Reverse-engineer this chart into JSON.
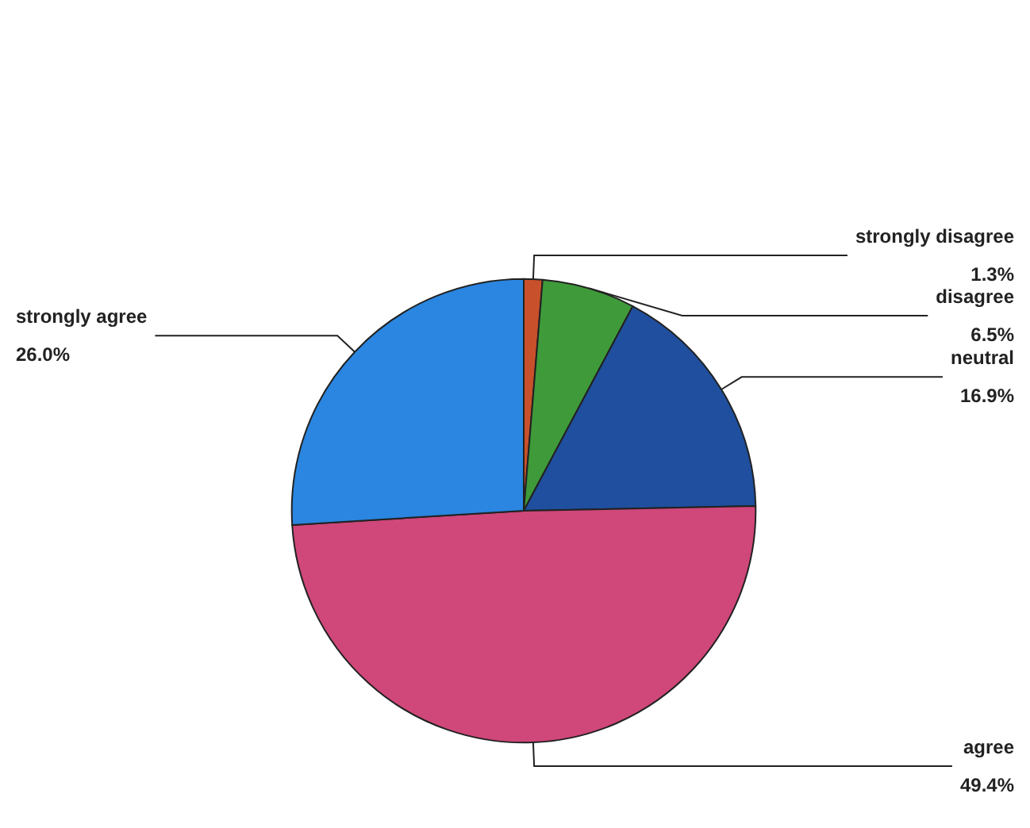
{
  "chart_data": {
    "type": "pie",
    "categories": [
      "strongly disagree",
      "disagree",
      "neutral",
      "agree",
      "strongly agree"
    ],
    "values": [
      1.3,
      6.5,
      16.9,
      49.4,
      26.0
    ],
    "value_labels": [
      "1.3%",
      "6.5%",
      "16.9%",
      "49.4%",
      "26.0%"
    ],
    "colors": [
      "#c8502a",
      "#3f9a3a",
      "#1f4f9e",
      "#d0477a",
      "#2a86e0"
    ],
    "legend": false
  }
}
